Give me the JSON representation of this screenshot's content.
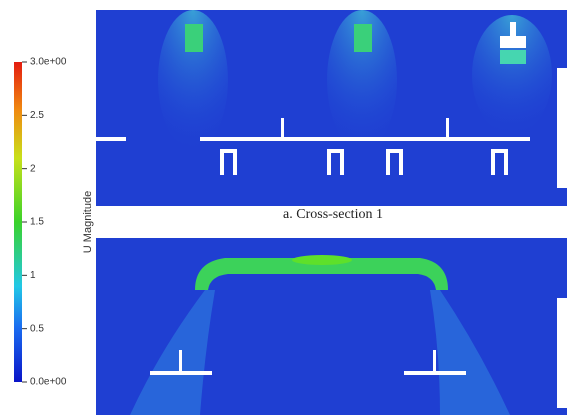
{
  "colorbar": {
    "title": "U Magnitude",
    "range": [
      0,
      3
    ],
    "ticks": [
      {
        "value": 0,
        "label": "0.0e+00"
      },
      0.5,
      1,
      1.5,
      2,
      2.5,
      {
        "value": 3,
        "label": "3.0e+00"
      }
    ]
  },
  "panels": [
    {
      "caption": "a. Cross-section 1"
    }
  ]
}
